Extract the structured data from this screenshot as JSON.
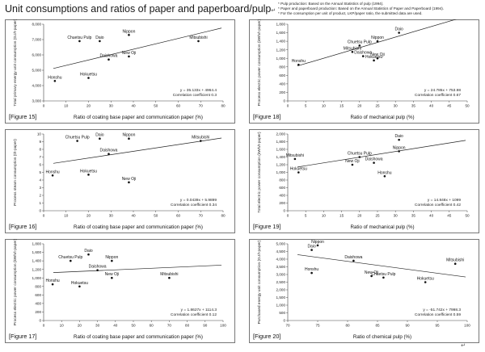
{
  "page": {
    "title": "Unit consumptions and ratios of paper and paperboard/pulp",
    "title_mark": "↵",
    "notes": [
      "* Pulp production: Based on the Annual Statistics of pulp (1994).",
      "* Paper and paperboard production: Based on the Annual Statistics of Paper and Paperboard (1994).",
      "* For the consumption per unit of product, LKP/paper ratio, the submitted data are used."
    ],
    "corner_mark": "↵"
  },
  "chart_data": [
    {
      "id": "fig15",
      "type": "scatter",
      "figure_label": "[Figure 15]",
      "xlabel": "Ratio of coating base paper and communication paper (%)",
      "ylabel": "Total primary energy unit consumption (GJ/t-paper)",
      "xlim": [
        0,
        80
      ],
      "ylim": [
        3000,
        8000
      ],
      "xticks": [
        0,
        10,
        20,
        30,
        40,
        50,
        60,
        70,
        80
      ],
      "yticks": [
        3000,
        4000,
        5000,
        6000,
        7000,
        8000
      ],
      "ytick_labels": [
        "3,000",
        "4,000",
        "5,000",
        "6,000",
        "7,000",
        "8,000"
      ],
      "points": [
        {
          "name": "Chuetsu Pulp",
          "x": 16,
          "y": 6900
        },
        {
          "name": "Daio",
          "x": 25,
          "y": 6900
        },
        {
          "name": "Nippon",
          "x": 38,
          "y": 7300
        },
        {
          "name": "Mitsubishi",
          "x": 69,
          "y": 6900
        },
        {
          "name": "Daishowa",
          "x": 29,
          "y": 5700
        },
        {
          "name": "New Oji",
          "x": 38,
          "y": 5900
        },
        {
          "name": "Hokuetsu",
          "x": 20,
          "y": 4500
        },
        {
          "name": "Honshu",
          "x": 5,
          "y": 4300
        }
      ],
      "trend": {
        "slope": 35.133,
        "intercept": 4964.4
      },
      "equation": "y = 35.133x + 4964.4",
      "r_text": "Correlation coefficient 0.3"
    },
    {
      "id": "fig18",
      "type": "scatter",
      "figure_label": "[Figure 18]",
      "xlabel": "Ratio of mechanical pulp (%)",
      "ylabel": "Process electric power consumption (kWh/t-paper)",
      "xlim": [
        0,
        50
      ],
      "ylim": [
        0,
        1800
      ],
      "xticks": [
        0,
        5,
        10,
        15,
        20,
        25,
        30,
        35,
        40,
        45,
        50
      ],
      "yticks": [
        0,
        200,
        400,
        600,
        800,
        1000,
        1200,
        1400,
        1600,
        1800
      ],
      "ytick_labels": [
        "0",
        "200",
        "400",
        "600",
        "800",
        "1,000",
        "1,200",
        "1,400",
        "1,600",
        "1,800"
      ],
      "points": [
        {
          "name": "Daio",
          "x": 31,
          "y": 1600
        },
        {
          "name": "Nippon",
          "x": 25,
          "y": 1400
        },
        {
          "name": "Chuetsu Pulp",
          "x": 20,
          "y": 1300
        },
        {
          "name": "Mitsubishi",
          "x": 18,
          "y": 1150
        },
        {
          "name": "Daishowa",
          "x": 21,
          "y": 1050
        },
        {
          "name": "New Oji",
          "x": 25,
          "y": 1000
        },
        {
          "name": "Hokuetsu",
          "x": 24,
          "y": 950
        },
        {
          "name": "Honshu",
          "x": 3,
          "y": 850
        }
      ],
      "trend": {
        "slope": 24.785,
        "intercept": 753.98
      },
      "equation": "y = 24.785x + 753.98",
      "r_text": "Correlation coefficient 0.67"
    },
    {
      "id": "fig16",
      "type": "scatter",
      "figure_label": "[Figure 16]",
      "xlabel": "Ratio of coating base paper and communication paper (%)",
      "ylabel": "Process steam consumption (t/t-paper)",
      "xlim": [
        0,
        80
      ],
      "ylim": [
        0,
        10
      ],
      "xticks": [
        0,
        10,
        20,
        30,
        40,
        50,
        60,
        70,
        80
      ],
      "yticks": [
        0,
        1,
        2,
        3,
        4,
        5,
        6,
        7,
        8,
        9,
        10
      ],
      "ytick_labels": [
        "0",
        "1",
        "2",
        "3",
        "4",
        "5",
        "6",
        "7",
        "8",
        "9",
        "10"
      ],
      "points": [
        {
          "name": "Chuetsu Pulp",
          "x": 15,
          "y": 9.1
        },
        {
          "name": "Daio",
          "x": 25,
          "y": 9.4
        },
        {
          "name": "Nippon",
          "x": 38,
          "y": 9.4
        },
        {
          "name": "Mitsubishi",
          "x": 70,
          "y": 9.1
        },
        {
          "name": "Daishowa",
          "x": 29,
          "y": 7.4
        },
        {
          "name": "Honshu",
          "x": 4,
          "y": 4.6
        },
        {
          "name": "Hokuetsu",
          "x": 20,
          "y": 4.7
        },
        {
          "name": "New Oji",
          "x": 38,
          "y": 3.7
        }
      ],
      "trend": {
        "slope": 0.0439,
        "intercept": 5.9899
      },
      "equation": "y = 0.0439x + 5.9899",
      "r_text": "Correlation coefficient 0.34"
    },
    {
      "id": "fig19",
      "type": "scatter",
      "figure_label": "[Figure 19]",
      "xlabel": "Ratio of mechanical pulp (%)",
      "ylabel": "Total electric power consumption (kWh/t-paper)",
      "xlim": [
        0,
        50
      ],
      "ylim": [
        0,
        2000
      ],
      "xticks": [
        0,
        5,
        10,
        15,
        20,
        25,
        30,
        35,
        40,
        45,
        50
      ],
      "yticks": [
        0,
        200,
        400,
        600,
        800,
        1000,
        1200,
        1400,
        1600,
        1800,
        2000
      ],
      "ytick_labels": [
        "0",
        "200",
        "400",
        "600",
        "800",
        "1,000",
        "1,200",
        "1,400",
        "1,600",
        "1,800",
        "2,000"
      ],
      "points": [
        {
          "name": "Daio",
          "x": 31,
          "y": 1850
        },
        {
          "name": "Nippon",
          "x": 31,
          "y": 1550
        },
        {
          "name": "Chuetsu Pulp",
          "x": 20,
          "y": 1400
        },
        {
          "name": "Mitsubishi",
          "x": 2,
          "y": 1350
        },
        {
          "name": "New Oji",
          "x": 18,
          "y": 1200
        },
        {
          "name": "Daishowa",
          "x": 24,
          "y": 1250
        },
        {
          "name": "Hokuetsu",
          "x": 3,
          "y": 1000
        },
        {
          "name": "Honshu",
          "x": 27,
          "y": 900
        }
      ],
      "trend": {
        "slope": 14.848,
        "intercept": 1099
      },
      "equation": "y = 14.848x + 1099",
      "r_text": "Correlation coefficient 0.42"
    },
    {
      "id": "fig17",
      "type": "scatter",
      "figure_label": "[Figure 17]",
      "xlabel": "Ratio of coating base paper and communication paper (%)",
      "ylabel": "Process electric power consumption (kWh/t-paper)",
      "xlim": [
        0,
        100
      ],
      "ylim": [
        0,
        1800
      ],
      "xticks": [
        0,
        10,
        20,
        30,
        40,
        50,
        60,
        70,
        80,
        90,
        100
      ],
      "yticks": [
        0,
        200,
        400,
        600,
        800,
        1000,
        1200,
        1400,
        1600,
        1800
      ],
      "ytick_labels": [
        "0",
        "200",
        "400",
        "600",
        "800",
        "1,000",
        "1,200",
        "1,400",
        "1,600",
        "1,800"
      ],
      "points": [
        {
          "name": "Daio",
          "x": 25,
          "y": 1550
        },
        {
          "name": "Chuetsu Pulp",
          "x": 15,
          "y": 1400
        },
        {
          "name": "Nippon",
          "x": 38,
          "y": 1400
        },
        {
          "name": "Daishowa",
          "x": 30,
          "y": 1180
        },
        {
          "name": "New Oji",
          "x": 38,
          "y": 1000
        },
        {
          "name": "Mitsubishi",
          "x": 70,
          "y": 1000
        },
        {
          "name": "Honshu",
          "x": 5,
          "y": 850
        },
        {
          "name": "Hokuetsu",
          "x": 20,
          "y": 800
        }
      ],
      "trend": {
        "slope": 1.8627,
        "intercept": 1114.3
      },
      "equation": "y = 1.8627x + 1114.3",
      "r_text": "Correlation coefficient 0.12"
    },
    {
      "id": "fig20",
      "type": "scatter",
      "figure_label": "[Figure 20]",
      "xlabel": "Ratio of chemical pulp (%)",
      "ylabel": "Purchased energy unit consumption (GJ/t-paper)",
      "xlim": [
        70,
        100
      ],
      "ylim": [
        0,
        5000
      ],
      "xticks": [
        70,
        75,
        80,
        85,
        90,
        95,
        100
      ],
      "yticks": [
        0,
        500,
        1000,
        1500,
        2000,
        2500,
        3000,
        3500,
        4000,
        4500,
        5000
      ],
      "ytick_labels": [
        "0",
        "500",
        "1,000",
        "1,500",
        "2,000",
        "2,500",
        "3,000",
        "3,500",
        "4,000",
        "4,500",
        "5,000"
      ],
      "points": [
        {
          "name": "Nippon",
          "x": 75,
          "y": 4900
        },
        {
          "name": "Daio",
          "x": 74,
          "y": 4600
        },
        {
          "name": "Daishowa",
          "x": 81,
          "y": 3900
        },
        {
          "name": "Mitsubishi",
          "x": 98,
          "y": 3700
        },
        {
          "name": "Honshu",
          "x": 74,
          "y": 3100
        },
        {
          "name": "New Oji",
          "x": 84,
          "y": 2900
        },
        {
          "name": "Chuetsu Pulp",
          "x": 86,
          "y": 2800
        },
        {
          "name": "Hokuetsu",
          "x": 93,
          "y": 2500
        }
      ],
      "trend": {
        "slope": -51.742,
        "intercept": 7998.3
      },
      "equation": "y = -51.742x + 7998.3",
      "r_text": "Correlation coefficient 0.59"
    }
  ]
}
